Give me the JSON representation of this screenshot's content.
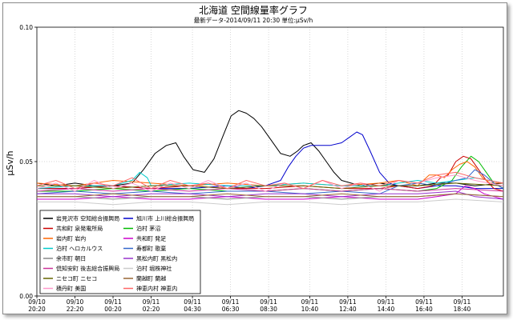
{
  "chart_data": {
    "type": "line",
    "title": "北海道 空間線量率グラフ",
    "subtitle": "最新データ-2014/09/11 20:30  単位:μSv/h",
    "xlabel": "",
    "ylabel": "μSv/h",
    "ylim": [
      0.0,
      0.1
    ],
    "yticks": [
      "0.00",
      "0.05",
      "0.10"
    ],
    "grid": true,
    "legend_position": "bottom-left",
    "x_ticks": [
      {
        "date": "09/10",
        "time": "20:20"
      },
      {
        "date": "09/10",
        "time": "22:20"
      },
      {
        "date": "09/11",
        "time": "00:20"
      },
      {
        "date": "09/11",
        "time": "02:20"
      },
      {
        "date": "09/11",
        "time": "04:30"
      },
      {
        "date": "09/11",
        "time": "06:30"
      },
      {
        "date": "09/11",
        "time": "08:30"
      },
      {
        "date": "09/11",
        "time": "10:40"
      },
      {
        "date": "09/11",
        "time": "12:40"
      },
      {
        "date": "09/11",
        "time": "14:40"
      },
      {
        "date": "09/11",
        "time": "16:40"
      },
      {
        "date": "09/11",
        "time": "18:40"
      }
    ],
    "x_tick_pos": [
      0,
      2,
      4,
      6,
      8.17,
      10.17,
      12.17,
      14.33,
      16.33,
      18.33,
      20.33,
      22.33
    ],
    "x_range": [
      0,
      24.5
    ],
    "series": [
      {
        "name": "岩見沢市 空知総合振興局",
        "color": "#000000",
        "x": [
          0,
          1,
          2,
          3,
          4,
          5,
          5.6,
          6.2,
          6.8,
          7.3,
          7.7,
          8.2,
          8.8,
          9.3,
          9.8,
          10.2,
          10.6,
          11,
          11.4,
          11.8,
          12.3,
          12.8,
          13.3,
          13.7,
          14,
          14.4,
          14.8,
          15.2,
          15.6,
          16,
          16.5,
          17,
          18,
          19,
          20,
          21,
          22,
          23,
          24.5
        ],
        "values": [
          0.042,
          0.041,
          0.042,
          0.041,
          0.041,
          0.042,
          0.047,
          0.053,
          0.056,
          0.057,
          0.052,
          0.047,
          0.046,
          0.051,
          0.06,
          0.067,
          0.069,
          0.068,
          0.066,
          0.063,
          0.058,
          0.053,
          0.052,
          0.054,
          0.056,
          0.057,
          0.054,
          0.05,
          0.046,
          0.043,
          0.042,
          0.041,
          0.042,
          0.041,
          0.041,
          0.042,
          0.042,
          0.041,
          0.042
        ]
      },
      {
        "name": "旭川市 上川総合振興局",
        "color": "#0000cc",
        "x": [
          0,
          2,
          4,
          6,
          8,
          10,
          11,
          12,
          12.8,
          13.2,
          13.6,
          14,
          14.4,
          14.8,
          15.4,
          16,
          16.4,
          16.8,
          17.1,
          17.5,
          18,
          18.5,
          19,
          20,
          21,
          22,
          23,
          24.5
        ],
        "values": [
          0.04,
          0.04,
          0.041,
          0.04,
          0.04,
          0.041,
          0.04,
          0.041,
          0.043,
          0.048,
          0.052,
          0.055,
          0.056,
          0.056,
          0.056,
          0.057,
          0.059,
          0.061,
          0.06,
          0.054,
          0.046,
          0.042,
          0.041,
          0.04,
          0.041,
          0.041,
          0.04,
          0.04
        ]
      },
      {
        "name": "共和町 泉発電所局",
        "color": "#cc0000",
        "x": [
          0,
          2,
          4,
          6,
          8,
          10,
          12,
          14,
          16,
          18,
          19,
          20,
          20.8,
          21.2,
          21.6,
          22,
          22.4,
          22.8,
          23.2,
          23.6,
          24,
          24.5
        ],
        "values": [
          0.04,
          0.04,
          0.041,
          0.04,
          0.041,
          0.04,
          0.04,
          0.041,
          0.04,
          0.04,
          0.041,
          0.04,
          0.041,
          0.044,
          0.045,
          0.05,
          0.052,
          0.051,
          0.047,
          0.043,
          0.04,
          0.039
        ]
      },
      {
        "name": "泊村 茅沼",
        "color": "#00bb00",
        "x": [
          0,
          2,
          4,
          6,
          8,
          10,
          12,
          14,
          16,
          18,
          20,
          21,
          21.8,
          22.3,
          22.8,
          23.2,
          23.6,
          24,
          24.5
        ],
        "values": [
          0.039,
          0.039,
          0.04,
          0.039,
          0.04,
          0.039,
          0.039,
          0.04,
          0.039,
          0.04,
          0.039,
          0.04,
          0.043,
          0.048,
          0.052,
          0.05,
          0.046,
          0.042,
          0.04
        ]
      },
      {
        "name": "岩内町 岩内",
        "color": "#ff6600",
        "x": [
          0,
          2,
          4,
          6,
          8,
          10,
          12,
          14,
          16,
          18,
          19,
          20,
          20.6,
          21,
          21.4,
          21.8,
          22.2,
          22.6,
          23,
          23.4,
          23.8,
          24.5
        ],
        "values": [
          0.042,
          0.041,
          0.043,
          0.042,
          0.041,
          0.042,
          0.041,
          0.042,
          0.041,
          0.042,
          0.043,
          0.041,
          0.045,
          0.045,
          0.044,
          0.047,
          0.049,
          0.05,
          0.048,
          0.044,
          0.042,
          0.042
        ]
      },
      {
        "name": "共和町 発足",
        "color": "#cc00cc",
        "x": [
          0,
          2,
          4,
          6,
          8,
          10,
          12,
          14,
          16,
          18,
          20,
          21,
          22,
          22.5,
          23,
          23.5,
          24,
          24.5
        ],
        "values": [
          0.036,
          0.036,
          0.037,
          0.036,
          0.036,
          0.037,
          0.036,
          0.036,
          0.037,
          0.036,
          0.036,
          0.037,
          0.038,
          0.041,
          0.04,
          0.038,
          0.037,
          0.036
        ]
      },
      {
        "name": "泊村 ヘロカルウス",
        "color": "#00cccc",
        "x": [
          0,
          2,
          4,
          5,
          5.4,
          5.8,
          6,
          8,
          10,
          12,
          14,
          16,
          18,
          19,
          20,
          21,
          22,
          23,
          24.5
        ],
        "values": [
          0.04,
          0.041,
          0.041,
          0.043,
          0.046,
          0.044,
          0.041,
          0.042,
          0.041,
          0.041,
          0.042,
          0.041,
          0.041,
          0.042,
          0.043,
          0.042,
          0.043,
          0.044,
          0.042
        ]
      },
      {
        "name": "寿都町 歌棄",
        "color": "#3366cc",
        "x": [
          0,
          2,
          4,
          6,
          8,
          10,
          12,
          14,
          16,
          18,
          19,
          20,
          21,
          22,
          22.6,
          23,
          23.5,
          24,
          24.5
        ],
        "values": [
          0.038,
          0.039,
          0.038,
          0.039,
          0.038,
          0.039,
          0.039,
          0.038,
          0.039,
          0.038,
          0.041,
          0.042,
          0.041,
          0.043,
          0.044,
          0.047,
          0.045,
          0.042,
          0.04
        ]
      },
      {
        "name": "余市町 朝日",
        "color": "#888888",
        "x": [
          0,
          2,
          4,
          6,
          8,
          10,
          12,
          14,
          16,
          18,
          20,
          22,
          24.5
        ],
        "values": [
          0.037,
          0.037,
          0.036,
          0.037,
          0.037,
          0.036,
          0.037,
          0.037,
          0.036,
          0.037,
          0.037,
          0.038,
          0.037
        ]
      },
      {
        "name": "黒松内町 黒松内",
        "color": "#9933cc",
        "x": [
          0,
          2,
          4,
          6,
          8,
          10,
          12,
          14,
          16,
          18,
          20,
          22,
          23,
          24.5
        ],
        "values": [
          0.038,
          0.038,
          0.037,
          0.038,
          0.038,
          0.037,
          0.038,
          0.038,
          0.037,
          0.038,
          0.038,
          0.039,
          0.037,
          0.036
        ]
      },
      {
        "name": "倶知安町 後志総合振興局",
        "color": "#cc3399",
        "x": [
          0,
          2,
          4,
          6,
          8,
          10,
          12,
          14,
          16,
          18,
          20,
          22,
          24.5
        ],
        "values": [
          0.039,
          0.04,
          0.039,
          0.04,
          0.039,
          0.04,
          0.039,
          0.04,
          0.039,
          0.04,
          0.039,
          0.04,
          0.039
        ]
      },
      {
        "name": "ニセコ町 ニセコ",
        "color": "#666600",
        "x": [
          0,
          2,
          4,
          6,
          8,
          10,
          12,
          14,
          16,
          18,
          20,
          22,
          24.5
        ],
        "values": [
          0.041,
          0.041,
          0.04,
          0.041,
          0.041,
          0.04,
          0.041,
          0.041,
          0.04,
          0.041,
          0.041,
          0.042,
          0.041
        ]
      },
      {
        "name": "泊村 堀株神社",
        "color": "#cccccc",
        "x": [
          0,
          2,
          4,
          6,
          8,
          10,
          12,
          14,
          16,
          18,
          20,
          22,
          24.5
        ],
        "values": [
          0.035,
          0.035,
          0.034,
          0.035,
          0.035,
          0.034,
          0.035,
          0.035,
          0.034,
          0.035,
          0.035,
          0.036,
          0.035
        ]
      },
      {
        "name": "蘭越町 蘭越",
        "color": "#996633",
        "x": [
          0,
          2,
          4,
          6,
          8,
          10,
          12,
          14,
          16,
          18,
          20,
          22,
          24.5
        ],
        "values": [
          0.037,
          0.037,
          0.038,
          0.037,
          0.037,
          0.038,
          0.037,
          0.037,
          0.038,
          0.037,
          0.037,
          0.038,
          0.037
        ]
      },
      {
        "name": "積丹町 美国",
        "color": "#ff99cc",
        "x": [
          0,
          1,
          2,
          3,
          4,
          5,
          6,
          7,
          8,
          9,
          10,
          11,
          12,
          13,
          14,
          15,
          16,
          17,
          18,
          19,
          20,
          21,
          22,
          23,
          24.5
        ],
        "values": [
          0.04,
          0.042,
          0.039,
          0.043,
          0.04,
          0.042,
          0.039,
          0.042,
          0.04,
          0.043,
          0.04,
          0.042,
          0.039,
          0.042,
          0.04,
          0.043,
          0.04,
          0.042,
          0.039,
          0.043,
          0.042,
          0.044,
          0.045,
          0.043,
          0.041
        ]
      },
      {
        "name": "神恵内村 神恵内",
        "color": "#ff6666",
        "x": [
          0,
          1,
          2,
          3,
          4,
          5,
          6,
          7,
          8,
          9,
          10,
          11,
          12,
          13,
          14,
          15,
          16,
          17,
          18,
          19,
          20,
          21,
          22,
          23,
          24.5
        ],
        "values": [
          0.041,
          0.043,
          0.04,
          0.042,
          0.041,
          0.044,
          0.04,
          0.043,
          0.041,
          0.042,
          0.04,
          0.043,
          0.041,
          0.042,
          0.04,
          0.043,
          0.041,
          0.042,
          0.041,
          0.043,
          0.042,
          0.045,
          0.046,
          0.044,
          0.042
        ]
      }
    ]
  }
}
